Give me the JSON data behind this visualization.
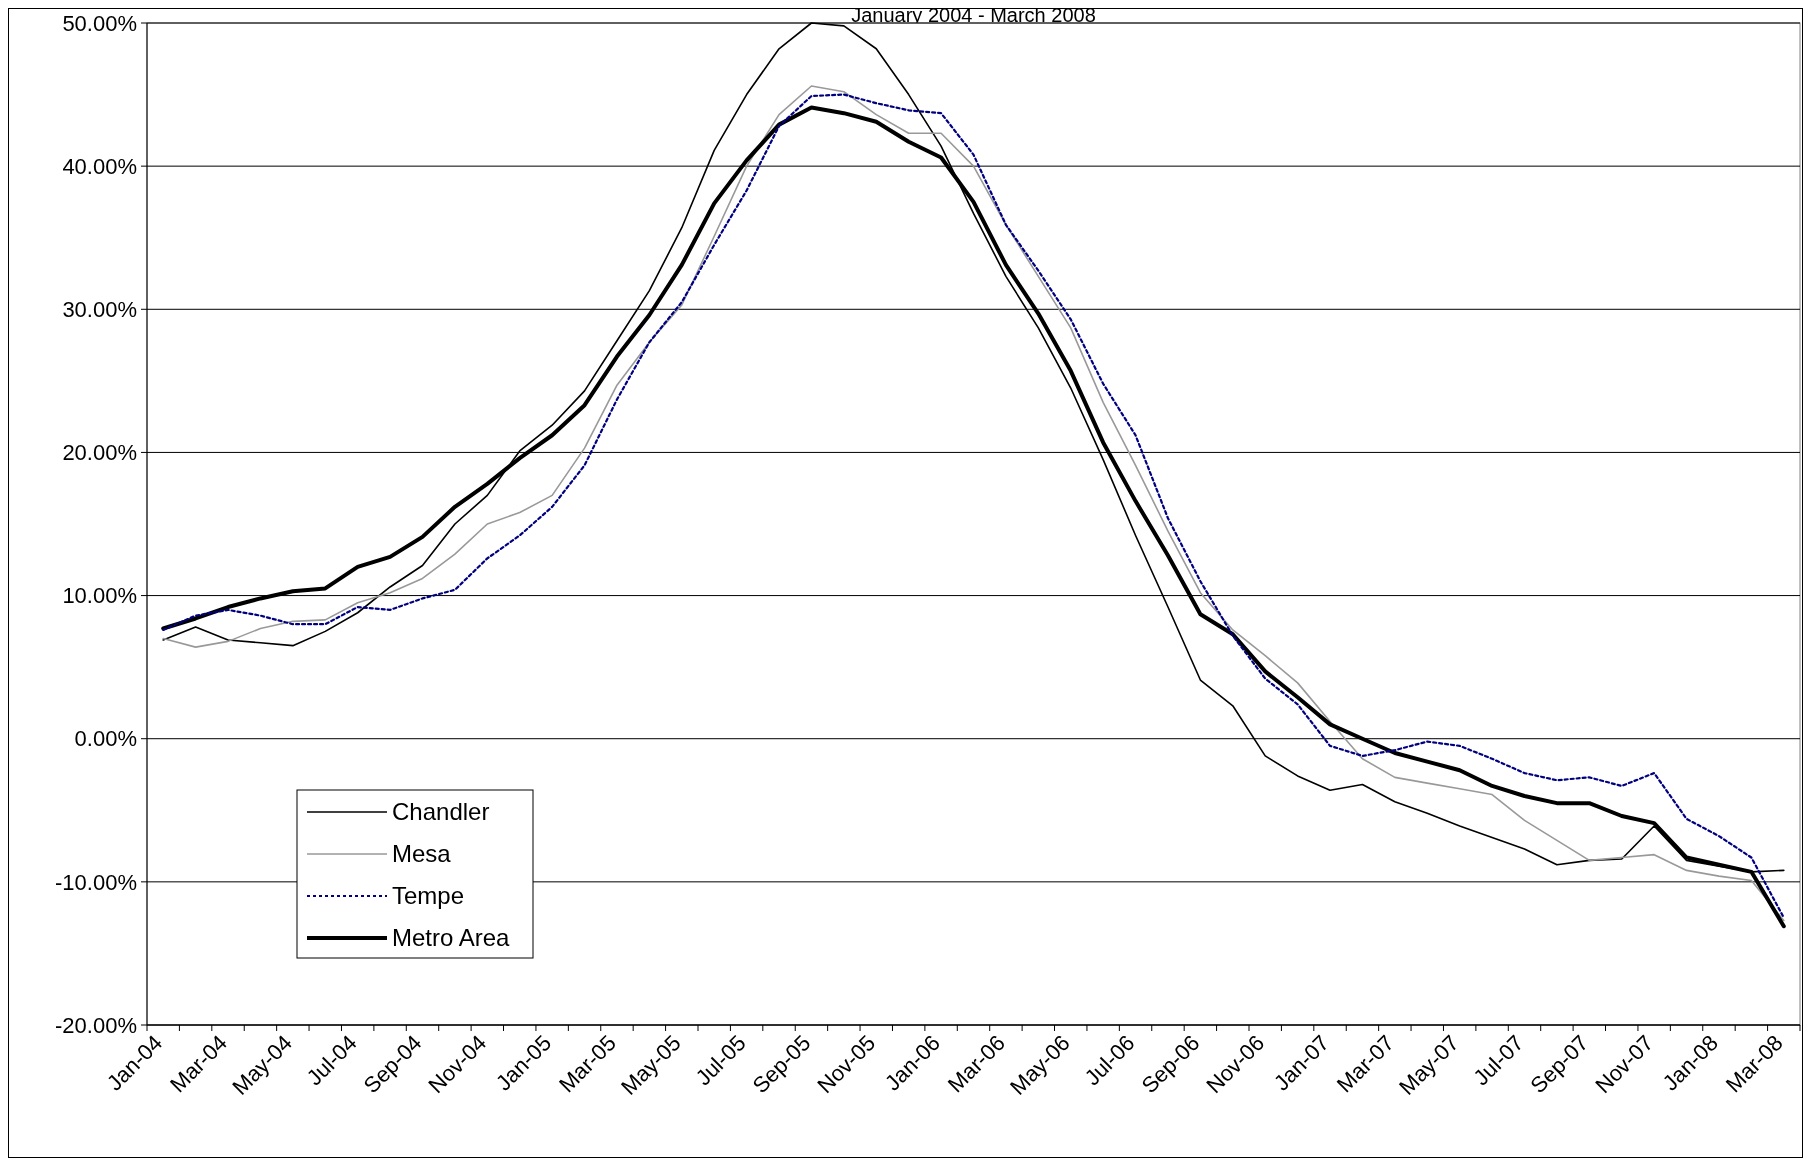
{
  "chart_data": {
    "type": "line",
    "title": "January 2004 - March 2008",
    "categories": [
      "Jan-04",
      null,
      "Mar-04",
      null,
      "May-04",
      null,
      "Jul-04",
      null,
      "Sep-04",
      null,
      "Nov-04",
      null,
      "Jan-05",
      null,
      "Mar-05",
      null,
      "May-05",
      null,
      "Jul-05",
      null,
      "Sep-05",
      null,
      "Nov-05",
      null,
      "Jan-06",
      null,
      "Mar-06",
      null,
      "May-06",
      null,
      "Jul-06",
      null,
      "Sep-06",
      null,
      "Nov-06",
      null,
      "Jan-07",
      null,
      "Mar-07",
      null,
      "May-07",
      null,
      "Jul-07",
      null,
      "Sep-07",
      null,
      "Nov-07",
      null,
      "Jan-08",
      null,
      "Mar-08"
    ],
    "series": [
      {
        "name": "Chandler",
        "color": "#000000",
        "line_style": "solid",
        "values": [
          6.9,
          7.8,
          6.9,
          6.7,
          6.5,
          7.5,
          8.8,
          10.6,
          12.1,
          15.0,
          17.0,
          20.1,
          21.9,
          24.3,
          27.8,
          31.3,
          35.7,
          41.1,
          45.0,
          48.2,
          50.0,
          49.8,
          48.2,
          45.0,
          41.4,
          36.7,
          32.3,
          28.7,
          24.5,
          19.5,
          14.2,
          9.2,
          4.1,
          2.3,
          -1.2,
          -2.6,
          -3.6,
          -3.2,
          -4.4,
          -5.2,
          -6.1,
          -6.9,
          -7.7,
          -8.8,
          -8.5,
          -8.4,
          -6.1,
          -8.5,
          -8.9,
          -9.3,
          -9.2
        ]
      },
      {
        "name": "Mesa",
        "color": "#999999",
        "line_style": "solid",
        "values": [
          7.0,
          6.4,
          6.8,
          7.7,
          8.2,
          8.3,
          9.5,
          10.2,
          11.2,
          12.9,
          15.0,
          15.8,
          17.0,
          20.3,
          24.7,
          27.7,
          30.3,
          35.1,
          40.0,
          43.6,
          45.6,
          45.2,
          43.6,
          42.3,
          42.3,
          40.0,
          35.9,
          32.3,
          28.7,
          23.5,
          19.1,
          14.5,
          10.2,
          7.6,
          5.8,
          3.9,
          1.2,
          -1.4,
          -2.7,
          -3.1,
          -3.5,
          -3.9,
          -5.7,
          -7.1,
          -8.5,
          -8.3,
          -8.1,
          -9.2,
          -9.6,
          -9.9,
          -12.7
        ]
      },
      {
        "name": "Tempe",
        "color": "#000080",
        "line_style": "dotted",
        "values": [
          7.6,
          8.6,
          9.0,
          8.6,
          8.0,
          8.0,
          9.2,
          9.0,
          9.8,
          10.4,
          12.6,
          14.2,
          16.2,
          19.1,
          23.7,
          27.7,
          30.5,
          34.5,
          38.3,
          42.8,
          44.9,
          45.0,
          44.4,
          43.9,
          43.7,
          40.8,
          35.9,
          32.7,
          29.3,
          24.8,
          21.2,
          15.4,
          11.0,
          7.2,
          4.2,
          2.4,
          -0.5,
          -1.2,
          -0.8,
          -0.2,
          -0.5,
          -1.4,
          -2.4,
          -2.9,
          -2.7,
          -3.3,
          -2.4,
          -5.6,
          -6.8,
          -8.3,
          -12.5
        ]
      },
      {
        "name": "Metro Area",
        "color": "#000000",
        "line_style": "solid",
        "values": [
          7.7,
          8.4,
          9.2,
          9.8,
          10.3,
          10.5,
          12.0,
          12.7,
          14.1,
          16.2,
          17.8,
          19.6,
          21.2,
          23.3,
          26.7,
          29.6,
          33.1,
          37.4,
          40.4,
          42.9,
          44.1,
          43.7,
          43.1,
          41.7,
          40.6,
          37.5,
          33.1,
          29.7,
          25.7,
          20.7,
          16.6,
          12.8,
          8.7,
          7.3,
          4.7,
          2.9,
          1.0,
          0.0,
          -1.0,
          -1.6,
          -2.2,
          -3.3,
          -4.0,
          -4.5,
          -4.5,
          -5.4,
          -5.9,
          -8.3,
          -8.8,
          -9.3,
          -13.1
        ]
      }
    ],
    "ylim": [
      -20,
      50
    ],
    "yticks": [
      {
        "value": -20,
        "label": "-20.00%"
      },
      {
        "value": -10,
        "label": "-10.00%"
      },
      {
        "value": 0,
        "label": "0.00%"
      },
      {
        "value": 10,
        "label": "10.00%"
      },
      {
        "value": 20,
        "label": "20.00%"
      },
      {
        "value": 30,
        "label": "30.00%"
      },
      {
        "value": 40,
        "label": "40.00%"
      },
      {
        "value": 50,
        "label": "50.00%"
      }
    ],
    "grid": "y",
    "legend": "bottom left",
    "marker": "none"
  }
}
